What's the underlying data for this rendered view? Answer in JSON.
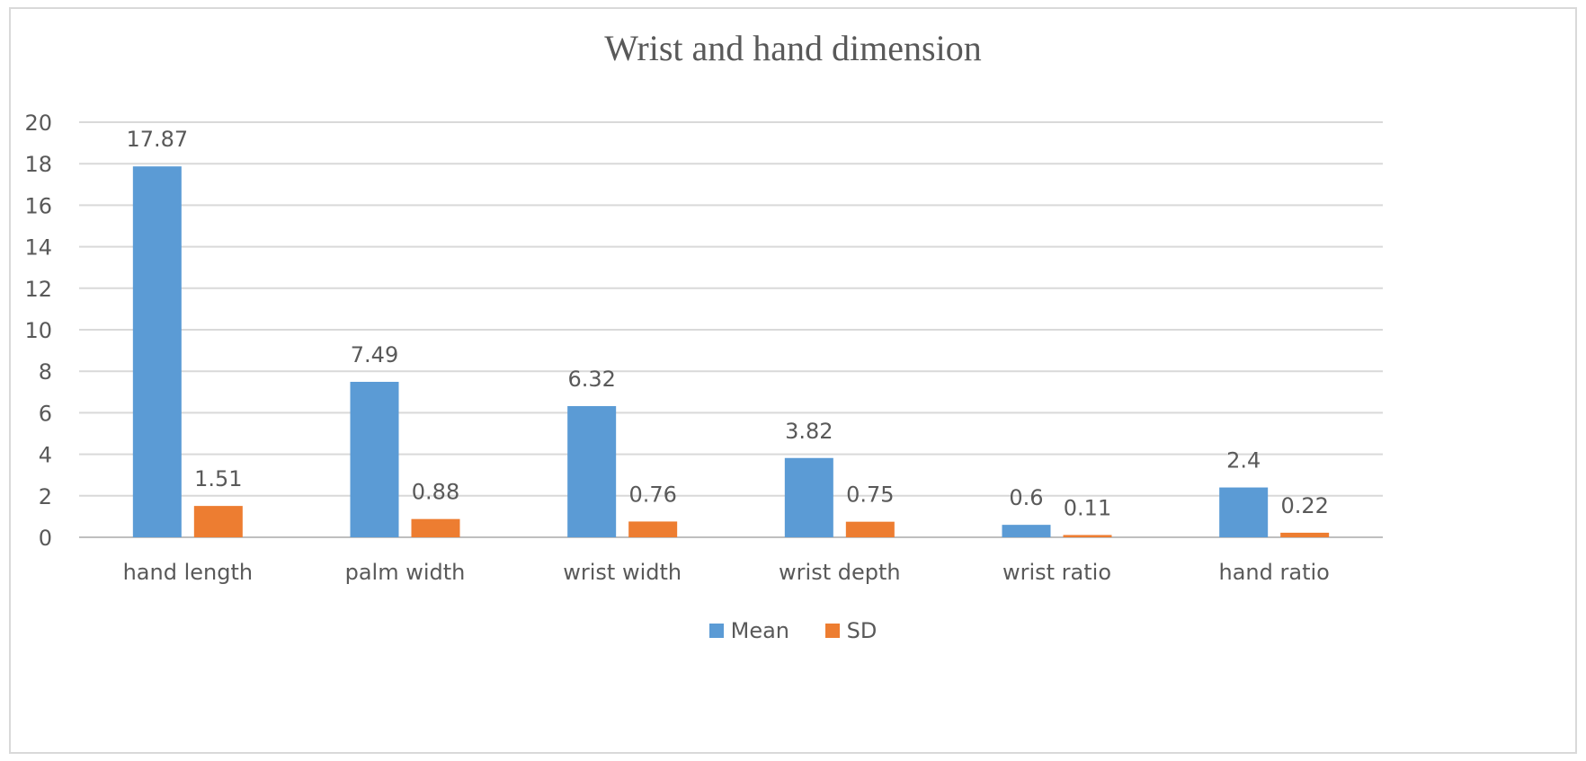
{
  "colors": {
    "mean": "#5b9bd5",
    "sd": "#ed7d31",
    "grid": "#d9d9d9",
    "text": "#595959"
  },
  "chart_data": {
    "type": "bar",
    "title": "Wrist and hand dimension",
    "xlabel": "",
    "ylabel": "",
    "ylim": [
      0,
      20
    ],
    "yticks": [
      "0",
      "2",
      "4",
      "6",
      "8",
      "10",
      "12",
      "14",
      "16",
      "18",
      "20"
    ],
    "grid": true,
    "legend_position": "bottom",
    "categories": [
      "hand length",
      "palm width",
      "wrist width",
      "wrist depth",
      "wrist ratio",
      "hand ratio"
    ],
    "series": [
      {
        "name": "Mean",
        "values": [
          17.87,
          7.49,
          6.32,
          3.82,
          0.6,
          2.4
        ],
        "labels": [
          "17.87",
          "7.49",
          "6.32",
          "3.82",
          "0.6",
          "2.4"
        ]
      },
      {
        "name": "SD",
        "values": [
          1.51,
          0.88,
          0.76,
          0.75,
          0.11,
          0.22
        ],
        "labels": [
          "1.51",
          "0.88",
          "0.76",
          "0.75",
          "0.11",
          "0.22"
        ]
      }
    ]
  }
}
